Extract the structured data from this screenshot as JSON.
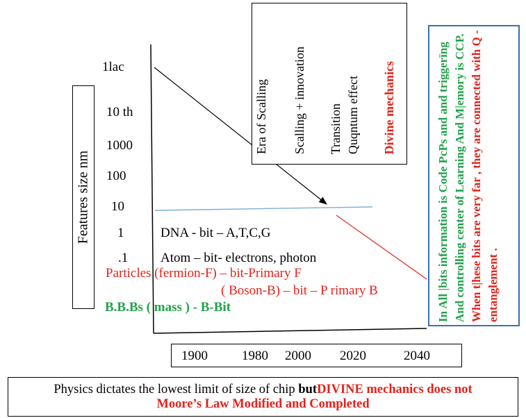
{
  "y_axis": {
    "label": "Features  size   nm",
    "ticks": [
      "1lac",
      "10 th",
      "1000",
      "100",
      "10",
      "1",
      ".1"
    ]
  },
  "rows": {
    "dna": "DNA  - bit – A,T,C,G",
    "atom": "Atom – bit- electrons, photon",
    "particles": "Particles (fermion-F) – bit-Primary F",
    "boson": "( Boson-B) – bit – P rimary B",
    "bbbs": "B.B.Bs  ( mass )  - B-Bit"
  },
  "eras": [
    {
      "text": "Era of Scalling"
    },
    {
      "text": "Scalling + innovation"
    },
    {
      "text": "Transition"
    },
    {
      "text": "Quqntum effect"
    },
    {
      "text": "Divine mechanics"
    }
  ],
  "note": {
    "green": "In All |bits information is Code  PcPs and and triggerïng And controlling center of Learning And M|emory   is CCP.",
    "red": "When t|hese bits are very far , they are connected with Q -entanglement ."
  },
  "years": [
    "1900",
    "1980",
    "2000",
    "2020",
    "2040"
  ],
  "footer": {
    "line1_plain": "Physics dictates the lowest limit of size of chip ",
    "line1_bold": "but",
    "line1_red": "DIVINE mechanics does not",
    "line2": "Moore’s Law Modified and Completed"
  },
  "colors": {
    "red": "#e0241c",
    "green": "#22a24a",
    "blue_border": "#3a6fb3",
    "blue_line": "#7aaedb"
  }
}
